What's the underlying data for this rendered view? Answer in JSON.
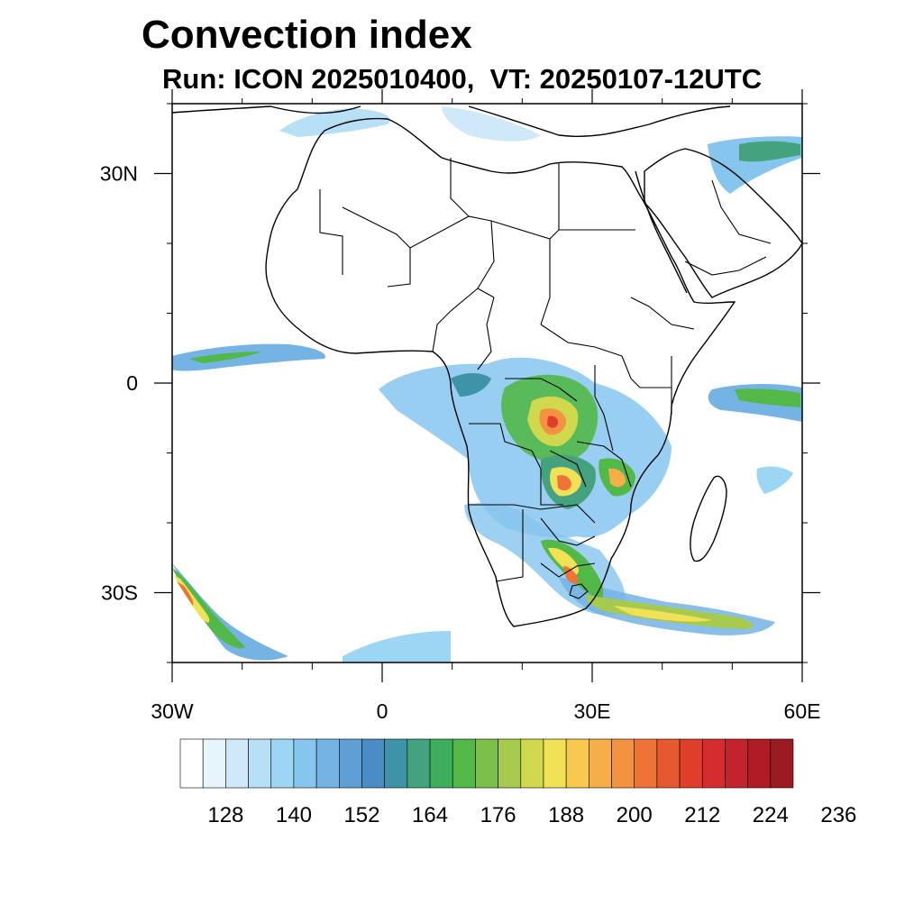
{
  "title": "Convection index",
  "subtitle": "Run: ICON 2025010400,  VT: 20250107-12UTC",
  "map": {
    "projection": "cylindrical equidistant",
    "lon_range": [
      -30,
      60
    ],
    "lat_range": [
      -40,
      40
    ],
    "field": "convection index"
  },
  "lon_ticks": [
    {
      "value": -30,
      "label": "30W"
    },
    {
      "value": 0,
      "label": "0"
    },
    {
      "value": 30,
      "label": "30E"
    },
    {
      "value": 60,
      "label": "60E"
    }
  ],
  "lat_ticks": [
    {
      "value": 30,
      "label": "30N"
    },
    {
      "value": 0,
      "label": "0"
    },
    {
      "value": -30,
      "label": "30S"
    }
  ],
  "colorbar": {
    "colors": [
      "#ffffff",
      "#e6f4fc",
      "#cfe9f8",
      "#b7e0f6",
      "#9dd6f4",
      "#86c6ee",
      "#74b3e4",
      "#5f9fd6",
      "#4a8cc4",
      "#3f93a8",
      "#44a37e",
      "#3fae5a",
      "#52b848",
      "#7cc04b",
      "#a6ca4d",
      "#d0d84e",
      "#f1e157",
      "#f8c84f",
      "#f6ae48",
      "#f39240",
      "#ee7436",
      "#e6582f",
      "#df3e2b",
      "#d52d2d",
      "#c3232c",
      "#ae1c26",
      "#9a1b22"
    ],
    "levels": [
      128,
      140,
      152,
      164,
      176,
      188,
      200,
      212,
      224,
      236
    ]
  }
}
